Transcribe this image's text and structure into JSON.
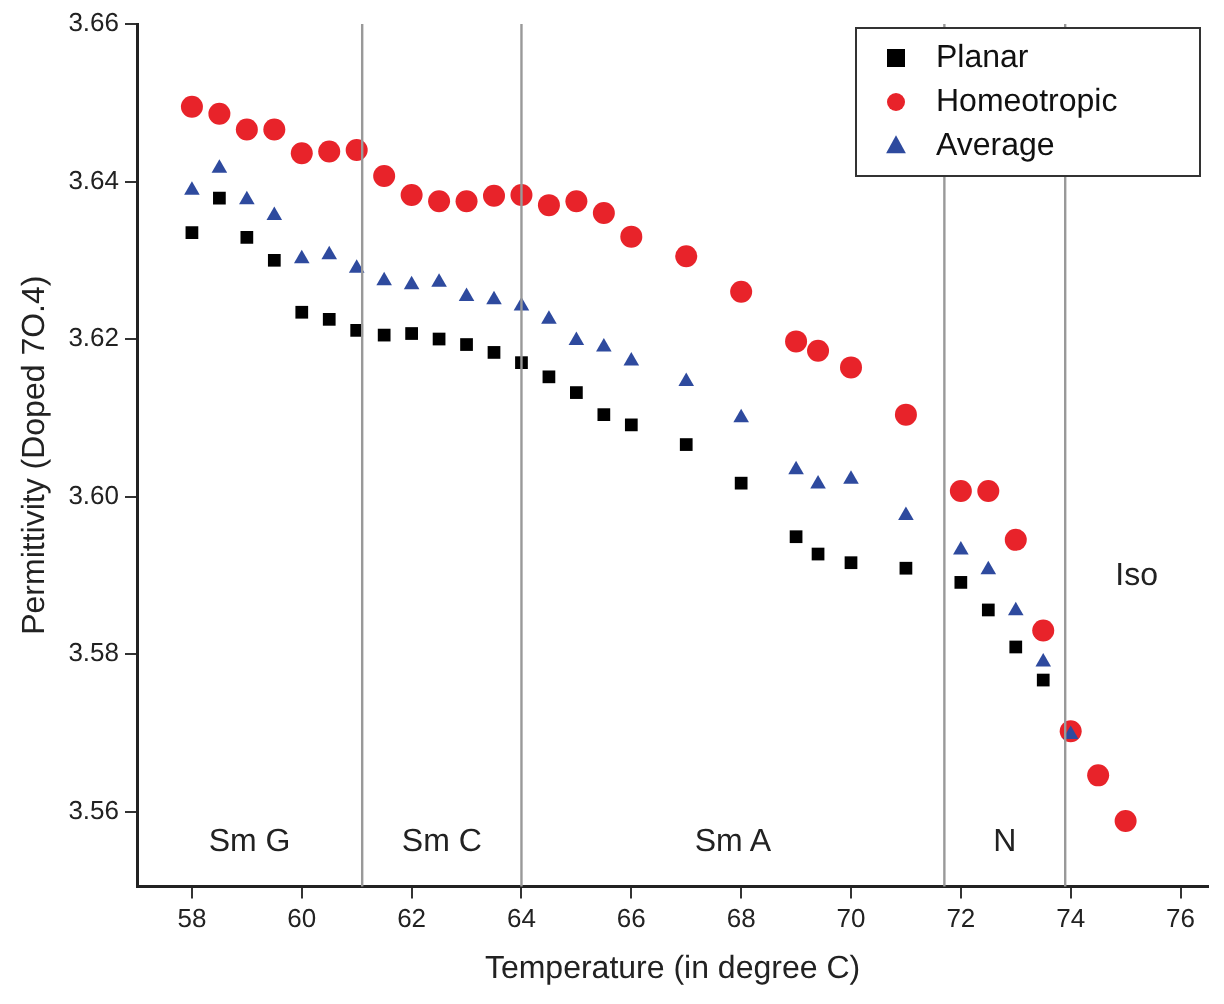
{
  "chart_data": {
    "type": "scatter",
    "xlabel": "Temperature (in degree C)",
    "ylabel": "Permittivity (Doped 7O.4)",
    "xlim": [
      57,
      76.5
    ],
    "xticks": [
      58,
      60,
      62,
      64,
      66,
      68,
      70,
      72,
      74,
      76
    ],
    "ylim": [
      3.5505,
      3.66
    ],
    "yticks": [
      3.56,
      3.58,
      {
        "value": 3.6,
        "label": "3.60"
      },
      3.62,
      3.64,
      3.66
    ],
    "grid": false,
    "legend": "top right",
    "series": [
      {
        "name": "Planar",
        "color": "#000000",
        "marker": "square",
        "x": [
          58,
          58.5,
          59,
          59.5,
          60,
          60.5,
          61,
          61.5,
          62,
          62.5,
          63,
          63.5,
          64,
          64.5,
          65,
          65.5,
          66,
          67,
          68,
          69,
          69.4,
          70,
          71,
          72,
          72.5,
          73,
          73.5
        ],
        "values": [
          3.6335,
          3.6379,
          3.6329,
          3.63,
          3.6234,
          3.6225,
          3.6211,
          3.6205,
          3.6207,
          3.62,
          3.6193,
          3.6183,
          3.617,
          3.6152,
          3.6132,
          3.6104,
          3.6091,
          3.6066,
          3.6017,
          3.5949,
          3.5927,
          3.5916,
          3.5909,
          3.5891,
          3.5856,
          3.5809,
          3.5767
        ]
      },
      {
        "name": "Homeotropic",
        "color": "#e8232a",
        "marker": "circle",
        "x": [
          58,
          58.5,
          59,
          59.5,
          60,
          60.5,
          61,
          61.5,
          62,
          62.5,
          63,
          63.5,
          64,
          64.5,
          65,
          65.5,
          66,
          67,
          68,
          69,
          69.4,
          70,
          71,
          72,
          72.5,
          73,
          73.5,
          74,
          74.5,
          75
        ],
        "values": [
          3.6495,
          3.6486,
          3.6466,
          3.6466,
          3.6436,
          3.6438,
          3.644,
          3.6407,
          3.6383,
          3.6375,
          3.6375,
          3.6382,
          3.6383,
          3.637,
          3.6375,
          3.636,
          3.633,
          3.6305,
          3.626,
          3.6197,
          3.6185,
          3.6164,
          3.6104,
          3.6007,
          3.6007,
          3.5945,
          3.583,
          3.5702,
          3.5646,
          3.5588
        ]
      },
      {
        "name": "Average",
        "color": "#2e4a9e",
        "marker": "triangle",
        "x": [
          58,
          58.5,
          59,
          59.5,
          60,
          60.5,
          61,
          61.5,
          62,
          62.5,
          63,
          63.5,
          64,
          64.5,
          65,
          65.5,
          66,
          67,
          68,
          69,
          69.4,
          70,
          71,
          72,
          72.5,
          73,
          73.5,
          74
        ],
        "values": [
          3.6389,
          3.6417,
          3.6377,
          3.6357,
          3.6302,
          3.6307,
          3.629,
          3.6274,
          3.6269,
          3.6272,
          3.6254,
          3.625,
          3.6242,
          3.6225,
          3.6198,
          3.619,
          3.6172,
          3.6146,
          3.61,
          3.6034,
          3.6016,
          3.6022,
          3.5976,
          3.5932,
          3.5907,
          3.5855,
          3.579,
          3.5698
        ]
      }
    ],
    "ref_lines": [
      {
        "axis": "x",
        "value": 61.1,
        "color": "#999999"
      },
      {
        "axis": "x",
        "value": 64,
        "color": "#999999"
      },
      {
        "axis": "x",
        "value": 71.7,
        "color": "#999999"
      },
      {
        "axis": "x",
        "value": 73.9,
        "color": "#999999"
      }
    ],
    "annotations": [
      "Sm G",
      "Sm C",
      "Sm A",
      "N",
      "Iso"
    ]
  }
}
